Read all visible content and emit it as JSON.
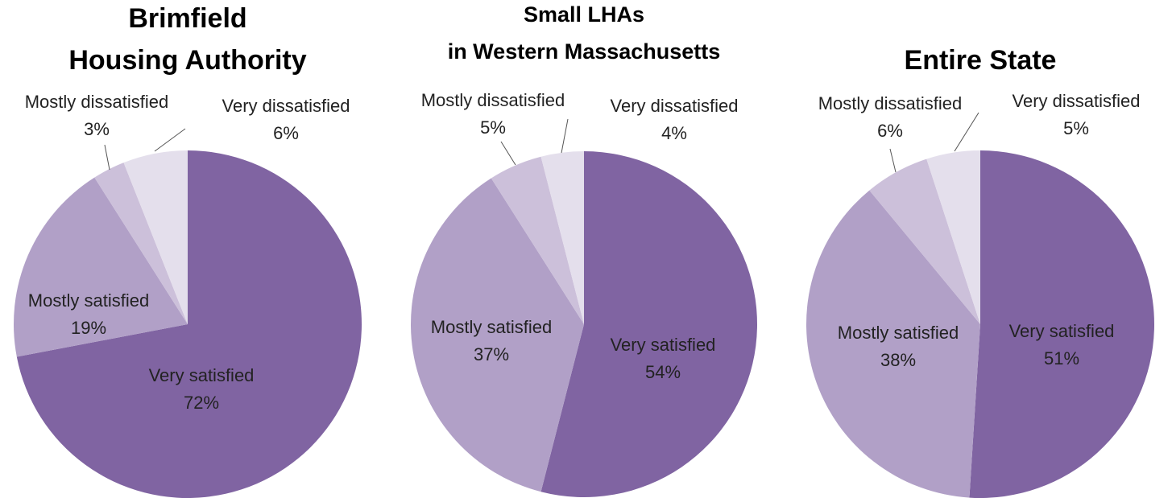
{
  "chart_data": [
    {
      "type": "pie",
      "title": [
        "Brimfield",
        "Housing Authority"
      ],
      "categories": [
        "Very satisfied",
        "Mostly satisfied",
        "Mostly dissatisfied",
        "Very dissatisfied"
      ],
      "values": [
        72,
        19,
        3,
        6
      ],
      "value_labels": [
        "72%",
        "19%",
        "3%",
        "6%"
      ],
      "colors": [
        "#8064a2",
        "#b1a0c7",
        "#ccc0da",
        "#e4dfec"
      ]
    },
    {
      "type": "pie",
      "title": [
        "Small LHAs",
        "in Western Massachusetts"
      ],
      "categories": [
        "Very satisfied",
        "Mostly satisfied",
        "Mostly dissatisfied",
        "Very dissatisfied"
      ],
      "values": [
        54,
        37,
        5,
        4
      ],
      "value_labels": [
        "54%",
        "37%",
        "5%",
        "4%"
      ],
      "colors": [
        "#8064a2",
        "#b1a0c7",
        "#ccc0da",
        "#e4dfec"
      ]
    },
    {
      "type": "pie",
      "title": [
        "Entire State"
      ],
      "categories": [
        "Very satisfied",
        "Mostly satisfied",
        "Mostly dissatisfied",
        "Very dissatisfied"
      ],
      "values": [
        51,
        38,
        6,
        5
      ],
      "value_labels": [
        "51%",
        "38%",
        "6%",
        "5%"
      ],
      "colors": [
        "#8064a2",
        "#b1a0c7",
        "#ccc0da",
        "#e4dfec"
      ]
    }
  ]
}
